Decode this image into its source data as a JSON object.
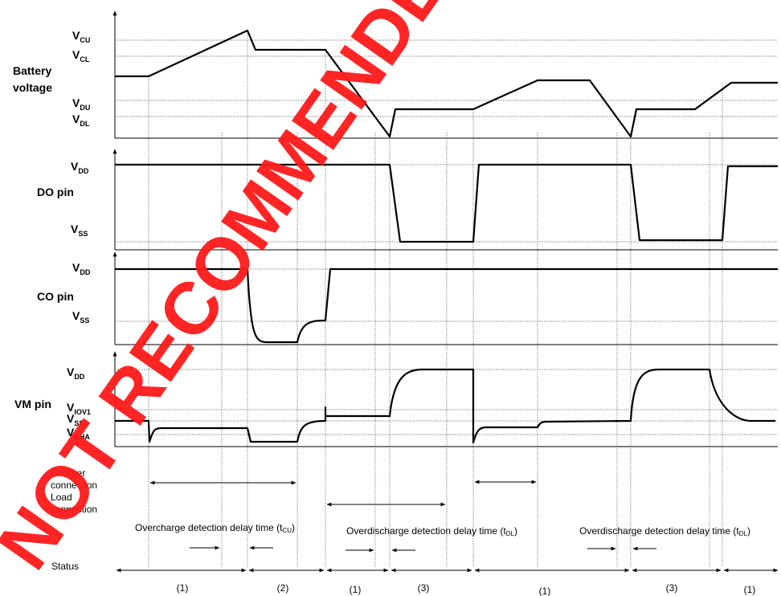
{
  "panels": {
    "battery": {
      "label_line1": "Battery",
      "label_line2": "voltage",
      "vcu": "CU",
      "vcl": "CL",
      "vdu": "DU",
      "vdl": "DL"
    },
    "do_pin": {
      "label": "DO pin",
      "vdd": "DD",
      "vss": "SS"
    },
    "co_pin": {
      "label": "CO pin",
      "vdd": "DD",
      "vss": "SS"
    },
    "vm_pin": {
      "label": "VM pin",
      "vdd": "DD",
      "viov1": "IOV1",
      "vss": "SS",
      "vcha": "CHA"
    }
  },
  "volt_prefix": "V",
  "connections": {
    "charger_line1": "Charger",
    "charger_line2": "connection",
    "load_line1": "Load",
    "load_line2": "connection"
  },
  "delays": {
    "overcharge": "Overcharge detection delay time (t",
    "overcharge_sub": "CU",
    "overdischarge_1": "Overdischarge detection delay time (t",
    "overdischarge_1_sub": "DL",
    "overdischarge_2": "Overdischarge detection delay time (t",
    "overdischarge_2_sub": "DL",
    "close": ")"
  },
  "status": {
    "label": "Status",
    "segments": [
      "(1)",
      "(2)",
      "(1)",
      "(3)",
      "(1)",
      "(3)",
      "(1)"
    ]
  },
  "watermark": "NOT RECOMMENDED"
}
